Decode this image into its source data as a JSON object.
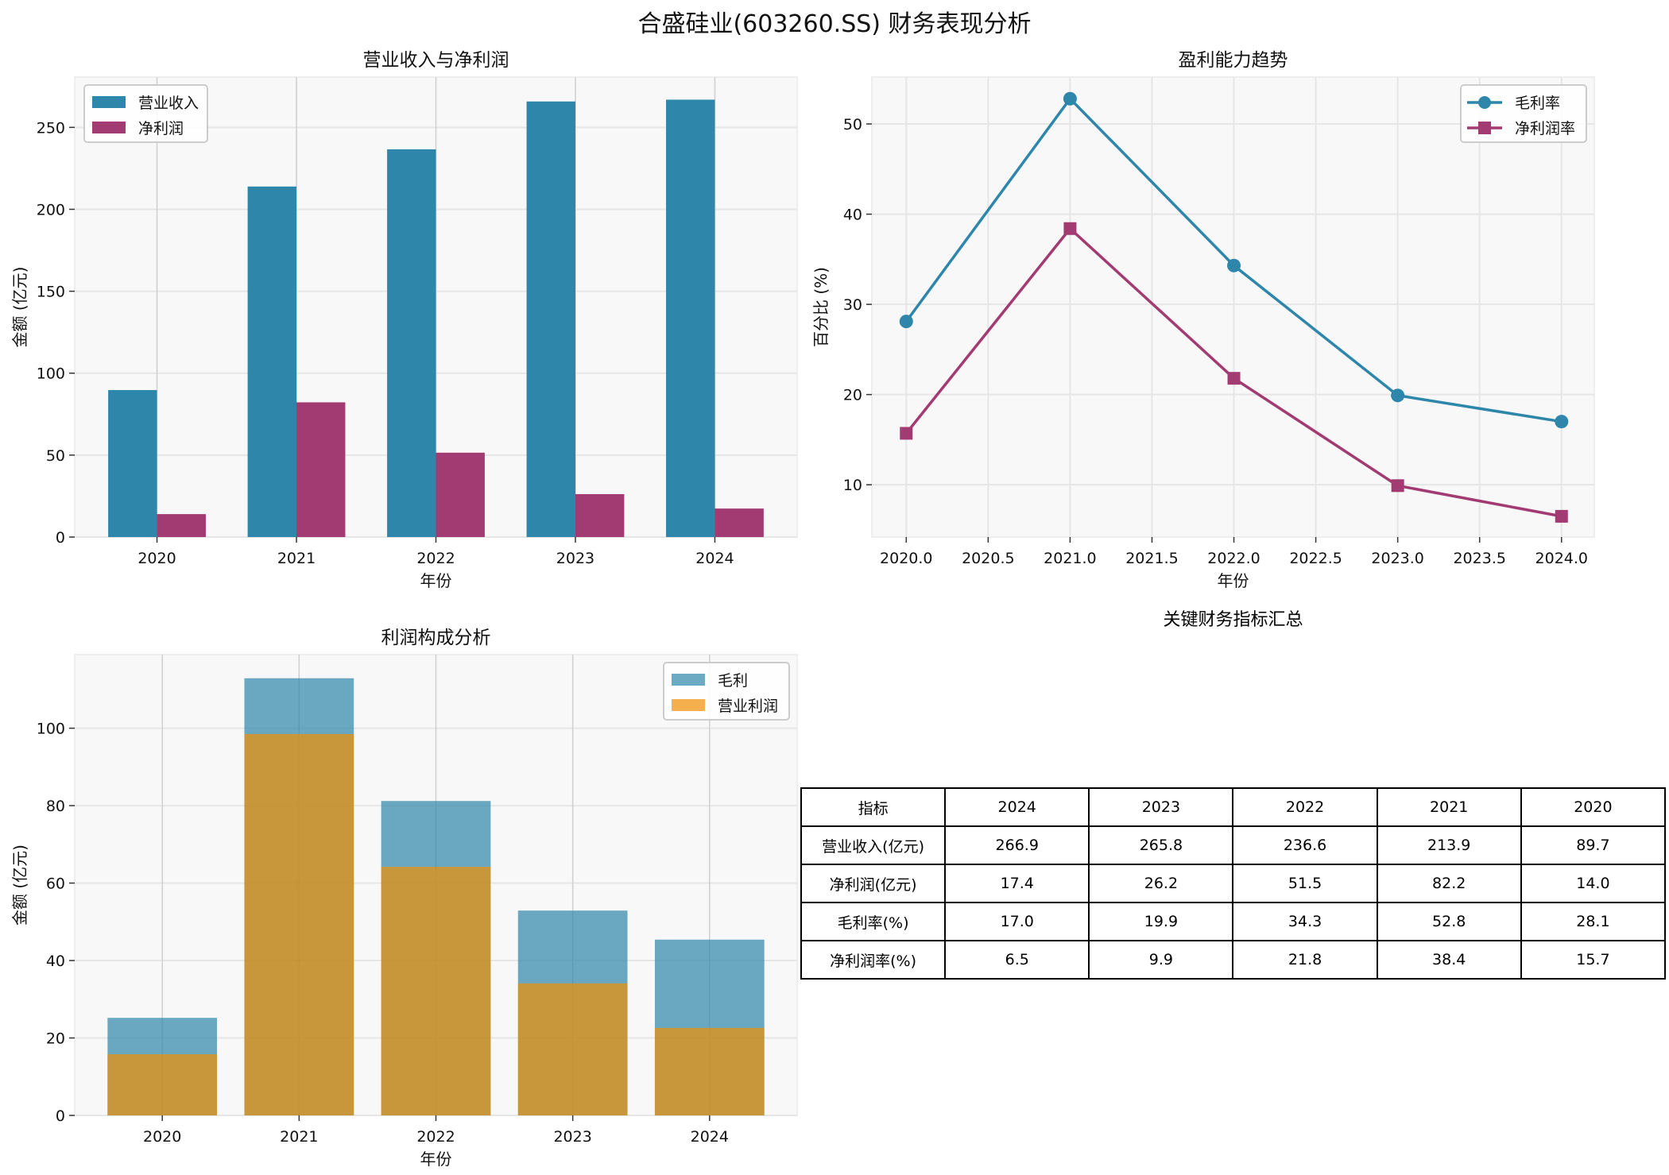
{
  "title": "合盛硅业(603260.SS) 财务表现分析",
  "colors": {
    "revenue": "#2E86AB",
    "net_profit": "#A23B72",
    "operating_profit": "#F18F01"
  },
  "chart_data": [
    {
      "type": "bar",
      "title": "营业收入与净利润",
      "xlabel": "年份",
      "ylabel": "金额 (亿元)",
      "categories": [
        "2020",
        "2021",
        "2022",
        "2023",
        "2024"
      ],
      "series": [
        {
          "name": "营业收入",
          "values": [
            89.7,
            213.9,
            236.6,
            265.8,
            266.9
          ],
          "color": "#2E86AB"
        },
        {
          "name": "净利润",
          "values": [
            14.0,
            82.2,
            51.5,
            26.2,
            17.4
          ],
          "color": "#A23B72"
        }
      ],
      "yticks": [
        0,
        50,
        100,
        150,
        200,
        250
      ],
      "ylim": [
        0,
        280.7
      ],
      "grid": true,
      "legend": "top-left"
    },
    {
      "type": "line",
      "title": "盈利能力趋势",
      "xlabel": "年份",
      "ylabel": "百分比 (%)",
      "x": [
        2020,
        2021,
        2022,
        2023,
        2024
      ],
      "series": [
        {
          "name": "毛利率",
          "values": [
            28.1,
            52.8,
            34.3,
            19.9,
            17.0
          ],
          "color": "#2E86AB",
          "marker": "circle"
        },
        {
          "name": "净利润率",
          "values": [
            15.7,
            38.4,
            21.8,
            9.9,
            6.5
          ],
          "color": "#A23B72",
          "marker": "square"
        }
      ],
      "xticks": [
        "2020.0",
        "2020.5",
        "2021.0",
        "2021.5",
        "2022.0",
        "2022.5",
        "2023.0",
        "2023.5",
        "2024.0"
      ],
      "yticks": [
        10,
        20,
        30,
        40,
        50
      ],
      "xlim": [
        2019.79,
        2024.2
      ],
      "ylim": [
        4.2,
        55.2
      ],
      "grid": true,
      "legend": "top-right"
    },
    {
      "type": "bar",
      "title": "利润构成分析",
      "xlabel": "年份",
      "ylabel": "金额 (亿元)",
      "categories": [
        "2020",
        "2021",
        "2022",
        "2023",
        "2024"
      ],
      "series": [
        {
          "name": "毛利",
          "values": [
            25.2,
            112.9,
            81.2,
            52.9,
            45.4
          ],
          "color": "#2E86AB"
        },
        {
          "name": "营业利润",
          "values": [
            15.8,
            98.5,
            64.2,
            34.1,
            22.6
          ],
          "color": "#F18F01"
        }
      ],
      "yticks": [
        0,
        20,
        40,
        60,
        80,
        100
      ],
      "ylim": [
        0,
        119
      ],
      "grid": true,
      "legend": "top-right"
    }
  ],
  "table": {
    "title": "关键财务指标汇总",
    "header": [
      "指标",
      "2024",
      "2023",
      "2022",
      "2021",
      "2020"
    ],
    "rows": [
      [
        "营业收入(亿元)",
        "266.9",
        "265.8",
        "236.6",
        "213.9",
        "89.7"
      ],
      [
        "净利润(亿元)",
        "17.4",
        "26.2",
        "51.5",
        "82.2",
        "14.0"
      ],
      [
        "毛利率(%)",
        "17.0",
        "19.9",
        "34.3",
        "52.8",
        "28.1"
      ],
      [
        "净利润率(%)",
        "6.5",
        "9.9",
        "21.8",
        "38.4",
        "15.7"
      ]
    ]
  }
}
